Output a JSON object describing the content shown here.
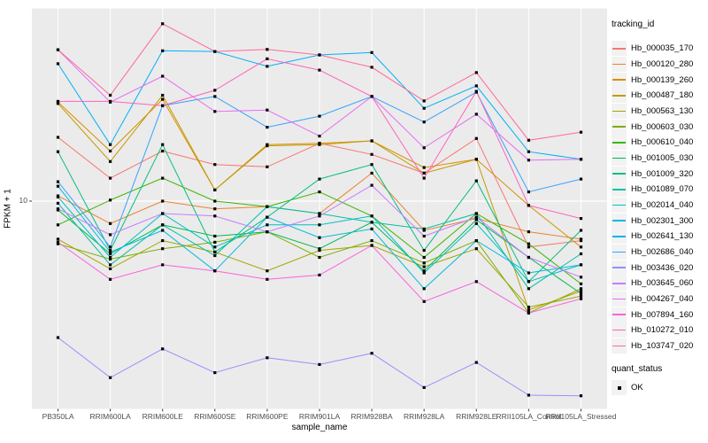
{
  "figure": {
    "background": "#FFFFFF",
    "panel_bg": "#EBEBEB",
    "grid_color": "#FFFFFF",
    "axis_text_color": "#4D4D4D",
    "tick_mark_color": "#333333",
    "point_color": "#000000",
    "legend_key_bg": "#F2F2F2"
  },
  "axes": {
    "x_label": "sample_name",
    "y_label": "FPKM + 1",
    "y_tick_label": "10"
  },
  "legend": {
    "tracking_title": "tracking_id",
    "quant_title": "quant_status",
    "quant_label": "OK"
  },
  "chart_data": {
    "type": "line",
    "title": "",
    "xlabel": "sample_name",
    "ylabel": "FPKM + 1",
    "y_scale": "log10",
    "y_tick_values": [
      10
    ],
    "y_range_approx": [
      1.5,
      60
    ],
    "grid": "major",
    "legend_position": "right",
    "point_shape": "filled-square",
    "point_color": "#000000",
    "quant_status_all": "OK",
    "x_categories": [
      "PB350LA",
      "RRIM600LA",
      "RRIM600LE",
      "RRIM600SE",
      "RRIM600PE",
      "RRIM901LA",
      "RRIM928BA",
      "RRIM928LA",
      "RRIM928LE",
      "RRII105LA_Control",
      "RRII105LA_Stressed"
    ],
    "series": [
      {
        "name": "Hb_000035_170",
        "color": "#F8766D",
        "values": [
          18.2,
          12.4,
          16.0,
          14.1,
          13.8,
          17.2,
          15.5,
          13.0,
          18.0,
          6.5,
          6.9
        ]
      },
      {
        "name": "Hb_000120_280",
        "color": "#EA8331",
        "values": [
          10.5,
          8.1,
          10.0,
          9.3,
          9.5,
          8.9,
          13.0,
          7.6,
          8.5,
          7.5,
          7.0
        ]
      },
      {
        "name": "Hb_000139_260",
        "color": "#D89000",
        "values": [
          25.3,
          16.0,
          26.0,
          11.1,
          17.0,
          17.2,
          17.6,
          13.7,
          14.8,
          9.6,
          6.5
        ]
      },
      {
        "name": "Hb_000487_180",
        "color": "#C09B00",
        "values": [
          25.0,
          14.5,
          27.0,
          11.1,
          16.8,
          17.0,
          17.6,
          13.0,
          14.8,
          3.6,
          4.3
        ]
      },
      {
        "name": "Hb_000563_130",
        "color": "#A3A500",
        "values": [
          7.0,
          5.3,
          6.9,
          6.2,
          5.2,
          6.3,
          6.6,
          5.4,
          6.4,
          3.7,
          4.1
        ]
      },
      {
        "name": "Hb_000603_030",
        "color": "#7CAE00",
        "values": [
          6.7,
          5.8,
          6.4,
          6.8,
          7.5,
          5.9,
          6.9,
          5.6,
          6.9,
          3.5,
          4.4
        ]
      },
      {
        "name": "Hb_000610_040",
        "color": "#39B600",
        "values": [
          8.0,
          10.1,
          12.4,
          10.0,
          9.5,
          10.9,
          8.7,
          5.9,
          8.9,
          6.7,
          4.6
        ]
      },
      {
        "name": "Hb_001005_030",
        "color": "#00BB4E",
        "values": [
          9.2,
          6.1,
          8.0,
          7.2,
          7.5,
          6.4,
          8.2,
          5.2,
          8.4,
          5.9,
          4.2
        ]
      },
      {
        "name": "Hb_001009_320",
        "color": "#00BF7D",
        "values": [
          15.9,
          6.3,
          17.0,
          6.2,
          8.6,
          12.3,
          14.1,
          6.3,
          12.1,
          4.7,
          7.6
        ]
      },
      {
        "name": "Hb_001089_070",
        "color": "#00C1A3",
        "values": [
          9.8,
          5.5,
          8.0,
          6.0,
          9.5,
          8.9,
          8.2,
          7.7,
          8.9,
          4.4,
          6.1
        ]
      },
      {
        "name": "Hb_002014_040",
        "color": "#00BFC4",
        "values": [
          10.4,
          5.9,
          8.9,
          6.5,
          8.0,
          8.0,
          8.7,
          5.1,
          8.1,
          4.7,
          5.5
        ]
      },
      {
        "name": "Hb_002301_300",
        "color": "#00BAE0",
        "values": [
          11.5,
          6.2,
          7.6,
          5.2,
          8.6,
          7.1,
          7.7,
          4.4,
          6.9,
          5.1,
          5.5
        ]
      },
      {
        "name": "Hb_002641_130",
        "color": "#00B0F6",
        "values": [
          36.3,
          17.0,
          41.0,
          40.7,
          35.4,
          39.4,
          40.3,
          23.9,
          29.5,
          15.9,
          14.8
        ]
      },
      {
        "name": "Hb_002686_040",
        "color": "#35A2FF",
        "values": [
          12.0,
          6.5,
          24.5,
          26.7,
          20.0,
          22.2,
          26.7,
          21.0,
          27.8,
          10.9,
          12.3
        ]
      },
      {
        "name": "Hb_003436_020",
        "color": "#9590FF",
        "values": [
          2.78,
          1.91,
          2.5,
          2.0,
          2.3,
          2.16,
          2.4,
          1.74,
          2.2,
          1.62,
          1.61
        ]
      },
      {
        "name": "Hb_003645_060",
        "color": "#C77CFF",
        "values": [
          9.3,
          7.3,
          8.9,
          8.7,
          7.5,
          8.7,
          11.6,
          7.2,
          8.6,
          5.9,
          4.9
        ]
      },
      {
        "name": "Hb_004267_040",
        "color": "#E76BF3",
        "values": [
          41.4,
          25.3,
          32.3,
          23.2,
          23.5,
          18.4,
          26.7,
          16.5,
          22.6,
          14.7,
          14.8
        ]
      },
      {
        "name": "Hb_007894_160",
        "color": "#FA62DB",
        "values": [
          6.8,
          4.8,
          5.5,
          5.2,
          4.8,
          5.0,
          6.6,
          3.9,
          4.7,
          3.5,
          4.0
        ]
      },
      {
        "name": "Hb_010272_010",
        "color": "#FF62BC",
        "values": [
          25.5,
          25.5,
          24.5,
          28.3,
          38.0,
          34.2,
          26.7,
          12.4,
          28.0,
          9.6,
          8.5
        ]
      },
      {
        "name": "Hb_103747_020",
        "color": "#FF6A98",
        "values": [
          41.4,
          27.0,
          52.8,
          40.7,
          41.5,
          39.4,
          35.1,
          25.6,
          33.4,
          17.7,
          19.1
        ]
      }
    ]
  }
}
